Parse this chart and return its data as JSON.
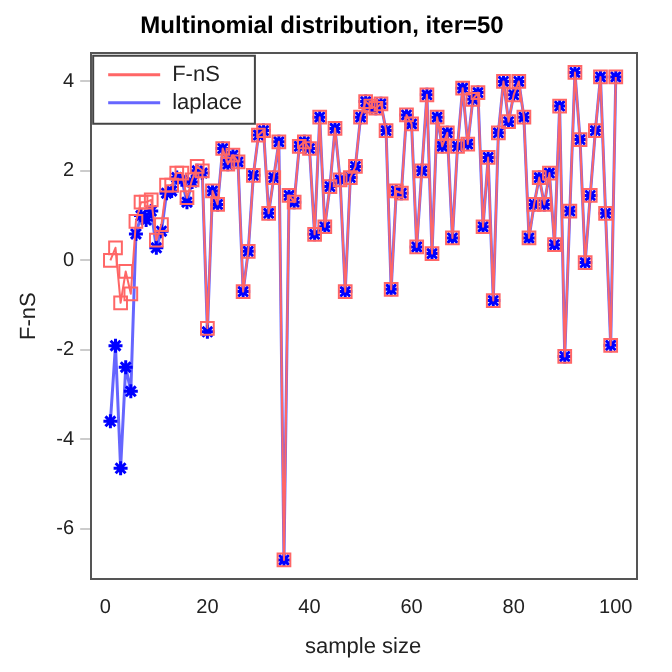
{
  "chart_data": {
    "type": "line",
    "title": "Multinomial distribution, iter=50",
    "xlabel": "sample size",
    "ylabel": "F-nS",
    "x": [
      1,
      2,
      3,
      4,
      5,
      6,
      7,
      8,
      9,
      10,
      11,
      12,
      13,
      14,
      15,
      16,
      17,
      18,
      19,
      20,
      21,
      22,
      23,
      24,
      25,
      26,
      27,
      28,
      29,
      30,
      31,
      32,
      33,
      34,
      35,
      36,
      37,
      38,
      39,
      40,
      41,
      42,
      43,
      44,
      45,
      46,
      47,
      48,
      49,
      50,
      51,
      52,
      53,
      54,
      55,
      56,
      57,
      58,
      59,
      60,
      61,
      62,
      63,
      64,
      65,
      66,
      67,
      68,
      69,
      70,
      71,
      72,
      73,
      74,
      75,
      76,
      77,
      78,
      79,
      80,
      81,
      82,
      83,
      84,
      85,
      86,
      87,
      88,
      89,
      90,
      91,
      92,
      93,
      94,
      95,
      96,
      97,
      98,
      99,
      100
    ],
    "xlim": [
      -2.96,
      103.96
    ],
    "ylim": [
      -7.14,
      4.64
    ],
    "xticks": [
      0,
      20,
      40,
      60,
      80,
      100
    ],
    "yticks": [
      -6,
      -4,
      -2,
      0,
      2,
      4
    ],
    "legend": "top left",
    "series": [
      {
        "name": "F-nS",
        "color": "#ff6666",
        "marker": "square",
        "values": [
          0,
          0.28,
          -0.95,
          -0.25,
          -0.75,
          0.87,
          1.3,
          1.3,
          1.35,
          0.45,
          0.8,
          1.68,
          1.68,
          1.95,
          1.95,
          1.4,
          1.8,
          2.1,
          2.0,
          -1.52,
          1.55,
          1.25,
          2.5,
          2.15,
          2.35,
          2.2,
          -0.7,
          0.2,
          1.9,
          2.8,
          2.9,
          1.05,
          1.85,
          2.65,
          -6.7,
          1.45,
          1.3,
          2.55,
          2.65,
          2.5,
          0.58,
          3.2,
          0.75,
          1.65,
          2.95,
          1.8,
          -0.7,
          1.85,
          2.1,
          3.2,
          3.55,
          3.45,
          3.4,
          3.5,
          2.9,
          -0.65,
          1.55,
          1.5,
          3.25,
          3.05,
          0.3,
          2.0,
          3.7,
          0.15,
          3.2,
          2.55,
          2.85,
          0.5,
          2.55,
          3.85,
          2.6,
          3.6,
          3.75,
          0.75,
          2.3,
          -0.9,
          2.85,
          4.0,
          3.1,
          3.7,
          4.0,
          3.2,
          0.5,
          1.25,
          1.85,
          1.25,
          1.95,
          0.35,
          3.45,
          -2.15,
          1.1,
          4.2,
          2.7,
          -0.05,
          1.45,
          2.9,
          4.1,
          1.05,
          -1.9,
          4.1
        ]
      },
      {
        "name": "laplace",
        "color": "#6666ff",
        "marker": "cross",
        "values": [
          -3.6,
          -1.91,
          -4.65,
          -2.39,
          -2.93,
          0.59,
          1.0,
          0.9,
          1.1,
          0.28,
          0.65,
          1.5,
          1.55,
          1.85,
          1.8,
          1.3,
          1.75,
          2.0,
          1.95,
          -1.6,
          1.55,
          1.25,
          2.5,
          2.15,
          2.35,
          2.2,
          -0.7,
          0.2,
          1.9,
          2.8,
          2.9,
          1.05,
          1.85,
          2.65,
          -6.7,
          1.45,
          1.3,
          2.55,
          2.65,
          2.5,
          0.58,
          3.2,
          0.75,
          1.65,
          2.95,
          1.8,
          -0.7,
          1.85,
          2.1,
          3.2,
          3.55,
          3.45,
          3.4,
          3.5,
          2.9,
          -0.65,
          1.55,
          1.5,
          3.25,
          3.05,
          0.3,
          2.0,
          3.7,
          0.15,
          3.2,
          2.55,
          2.85,
          0.5,
          2.55,
          3.85,
          2.6,
          3.6,
          3.75,
          0.75,
          2.3,
          -0.9,
          2.85,
          4.0,
          3.1,
          3.7,
          4.0,
          3.2,
          0.5,
          1.25,
          1.85,
          1.25,
          1.95,
          0.35,
          3.45,
          -2.15,
          1.1,
          4.2,
          2.7,
          -0.05,
          1.45,
          2.9,
          4.1,
          1.05,
          -1.9,
          4.1
        ]
      }
    ]
  }
}
